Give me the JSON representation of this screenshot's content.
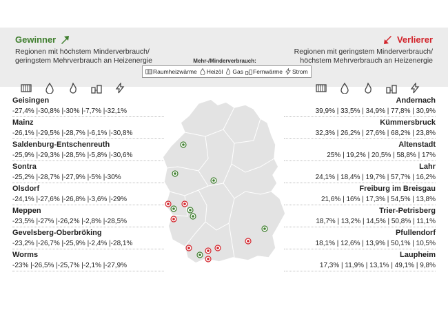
{
  "winner": {
    "title": "Gewinner",
    "subtitle_line1": "Regionen mit höchstem Minderverbrauch/",
    "subtitle_line2": "geringstem Mehrverbrauch an Heizenergie",
    "arrow_color": "#3f7e2e"
  },
  "loser": {
    "title": "Verlierer",
    "subtitle_line1": "Regionen mit geringstem Minderverbrauch/",
    "subtitle_line2": "höchstem Mehrverbrauch an Heizenergie",
    "arrow_color": "#d2232a"
  },
  "legend": {
    "title": "Mehr-/Minderverbrauch:",
    "items": [
      "Raumheizwärme",
      "Heizöl",
      "Gas",
      "Fernwärme",
      "Strom"
    ]
  },
  "icons": [
    "radiator-icon",
    "oil-drop-icon",
    "gas-flame-icon",
    "district-heating-icon",
    "lightning-icon"
  ],
  "winners": [
    {
      "name": "Geisingen",
      "values": "-27,4% |-30,8% |-30% |-7,7% |-32,1%"
    },
    {
      "name": "Mainz",
      "values": "-26,1% |-29,5% |-28,7% |-6,1% |-30,8%"
    },
    {
      "name": "Saldenburg-Entschenreuth",
      "values": "-25,9% |-29,3% |-28,5% |-5,8% |-30,6%"
    },
    {
      "name": "Sontra",
      "values": "-25,2% |-28,7% |-27,9% |-5% |-30%"
    },
    {
      "name": "Olsdorf",
      "values": "-24,1% |-27,6% |-26,8% |-3,6% |-29%"
    },
    {
      "name": "Meppen",
      "values": "-23,5% |-27% |-26,2% |-2,8% |-28,5%"
    },
    {
      "name": "Gevelsberg-Oberbröking",
      "values": "-23,2% |-26,7% |-25,9% |-2,4% |-28,1%"
    },
    {
      "name": "Worms",
      "values": "-23% |-26,5% |-25,7% |-2,1% |-27,9%"
    }
  ],
  "losers": [
    {
      "name": "Andernach",
      "values": "39,9% | 33,5% | 34,9% | 77,8% | 30,9%"
    },
    {
      "name": "Kümmersbruck",
      "values": "32,3% | 26,2% | 27,6% | 68,2% | 23,8%"
    },
    {
      "name": "Altenstadt",
      "values": "25% | 19,2% | 20,5% | 58,8% | 17%"
    },
    {
      "name": "Lahr",
      "values": "24,1% | 18,4% | 19,7% | 57,7% | 16,2%"
    },
    {
      "name": "Freiburg im Breisgau",
      "values": "21,6% | 16% | 17,3% | 54,5% | 13,8%"
    },
    {
      "name": "Trier-Petrisberg",
      "values": "18,7% | 13,2% | 14,5% | 50,8% | 11,1%"
    },
    {
      "name": "Pfullendorf",
      "values": "18,1% | 12,6% | 13,9% | 50,1% | 10,5%"
    },
    {
      "name": "Laupheim",
      "values": "17,3% | 11,9% | 13,1% | 49,1% | 9,8%"
    }
  ],
  "colors": {
    "winner_marker": "#3f7e2e",
    "loser_marker": "#d2232a",
    "map_fill": "#e3e3e3"
  }
}
